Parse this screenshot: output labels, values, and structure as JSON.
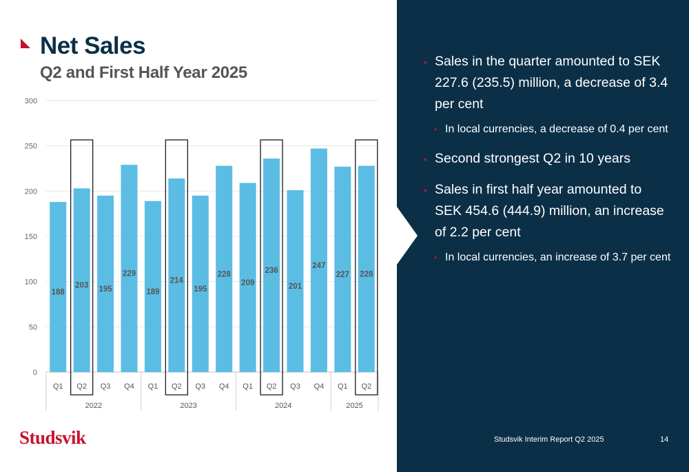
{
  "slide": {
    "title": "Net Sales",
    "subtitle": "Q2 and First Half Year 2025",
    "logo": "Studsvik",
    "footer": "Studsvik Interim Report Q2 2025",
    "page_number": "14"
  },
  "colors": {
    "bar": "#5bbde4",
    "panel": "#0b2f47",
    "accent": "#c8102e",
    "title": "#0b2f47"
  },
  "bullets": [
    {
      "level": 1,
      "text": "Sales in the quarter amounted to SEK 227.6 (235.5) million, a decrease of 3.4 per cent"
    },
    {
      "level": 2,
      "text": "In local currencies, a decrease of 0.4 per cent"
    },
    {
      "level": 1,
      "text": "Second strongest Q2 in 10 years"
    },
    {
      "level": 1,
      "text": "Sales in first half year amounted to SEK 454.6 (444.9) million, an increase of 2.2 per cent"
    },
    {
      "level": 2,
      "text": "In local currencies, an increase of 3.7 per cent"
    }
  ],
  "chart_data": {
    "type": "bar",
    "title": "",
    "xlabel": "",
    "ylabel": "",
    "ylim": [
      0,
      300
    ],
    "yticks": [
      0,
      50,
      100,
      150,
      200,
      250,
      300
    ],
    "grid": true,
    "categories": [
      "Q1",
      "Q2",
      "Q3",
      "Q4",
      "Q1",
      "Q2",
      "Q3",
      "Q4",
      "Q1",
      "Q2",
      "Q3",
      "Q4",
      "Q1",
      "Q2"
    ],
    "groups": [
      {
        "label": "2022",
        "count": 4
      },
      {
        "label": "2023",
        "count": 4
      },
      {
        "label": "2024",
        "count": 4
      },
      {
        "label": "2025",
        "count": 2
      }
    ],
    "values": [
      188,
      203,
      195,
      229,
      189,
      214,
      195,
      228,
      209,
      236,
      201,
      247,
      227,
      228
    ],
    "highlighted": [
      1,
      5,
      9,
      13
    ]
  }
}
